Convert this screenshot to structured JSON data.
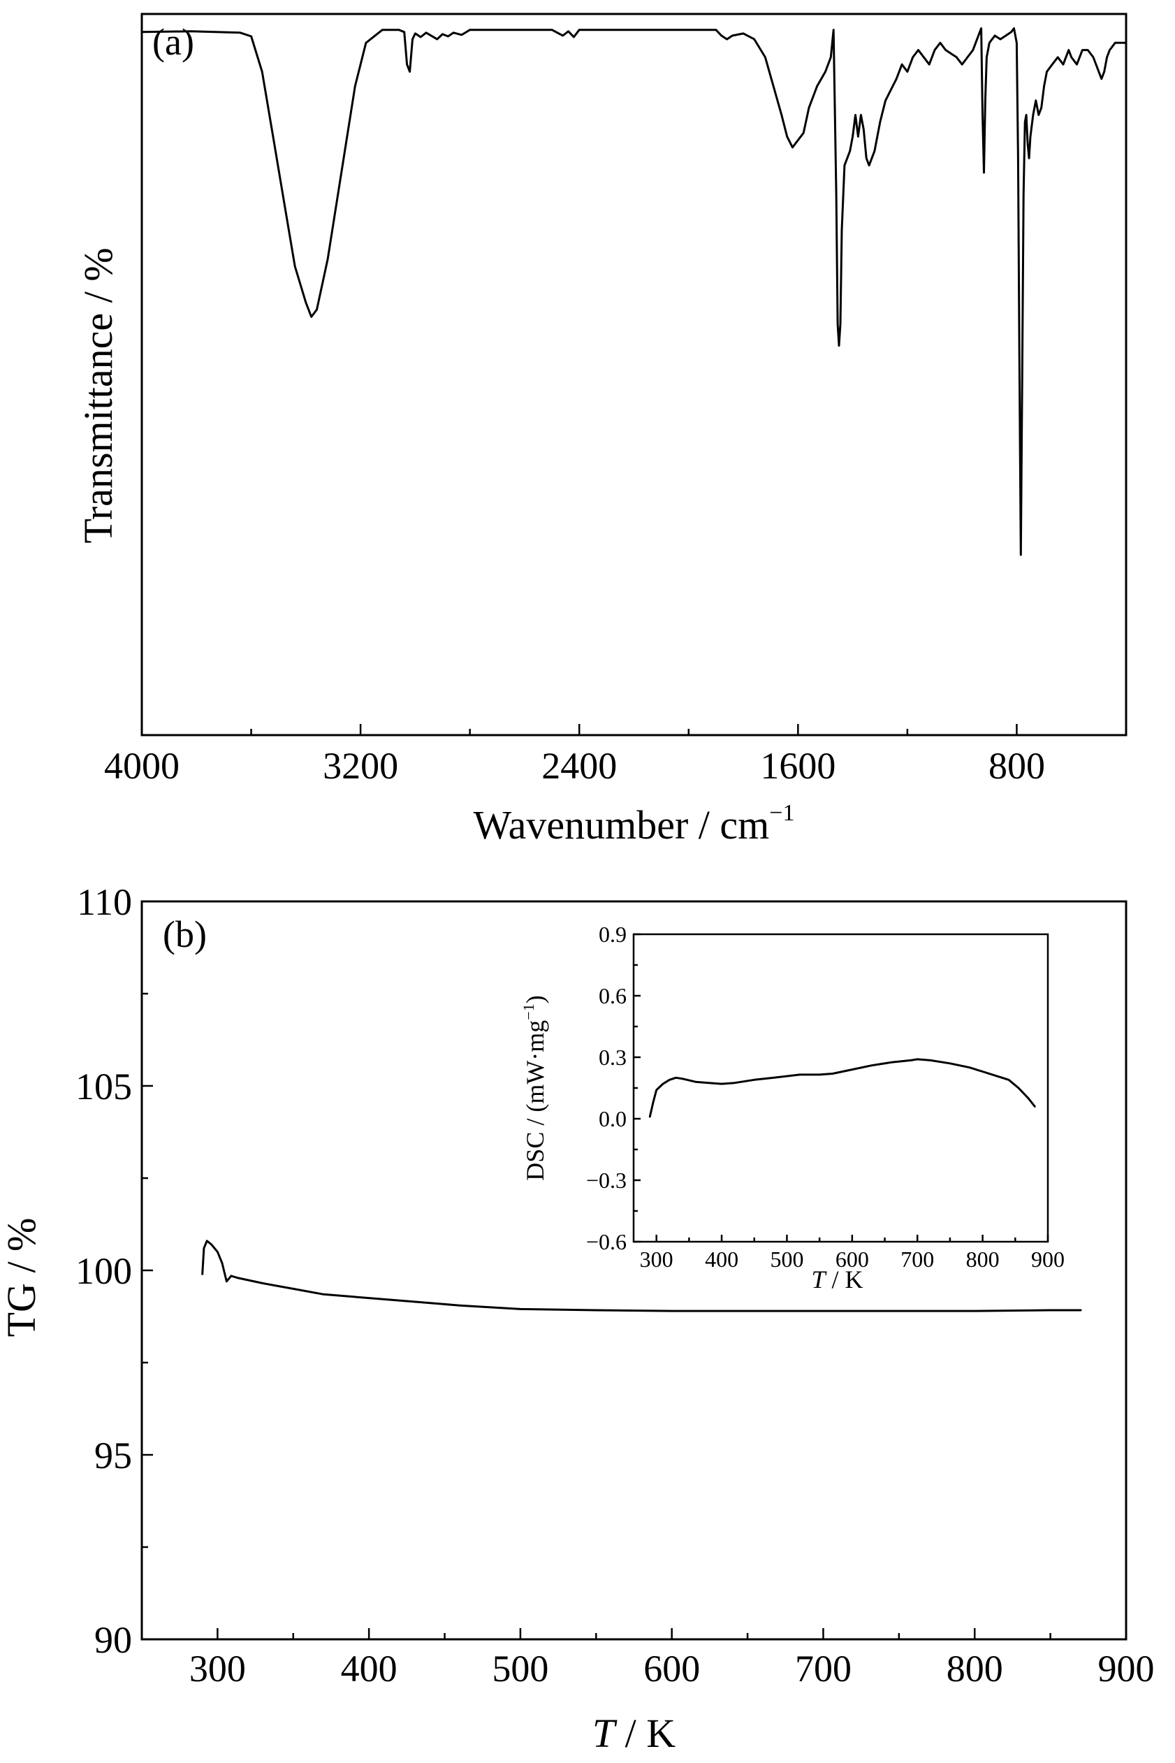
{
  "chart_data": [
    {
      "panel": "(a)",
      "type": "line",
      "xlabel_main": "Wavenumber / cm",
      "xlabel_sup": "−1",
      "ylabel": "Transmittance / %",
      "xlim": [
        4000,
        400
      ],
      "x_ticks": [
        4000,
        3200,
        2400,
        1600,
        800
      ],
      "x_minor_ticks": [
        3600,
        2800,
        2000,
        1200
      ],
      "y_ticks_shown": false,
      "series": [
        {
          "points": [
            [
              4000,
              97.5
            ],
            [
              3820,
              97.6
            ],
            [
              3640,
              97.4
            ],
            [
              3600,
              96.9
            ],
            [
              3560,
              92
            ],
            [
              3520,
              83
            ],
            [
              3480,
              74
            ],
            [
              3440,
              65
            ],
            [
              3400,
              60
            ],
            [
              3380,
              58
            ],
            [
              3360,
              59
            ],
            [
              3320,
              66
            ],
            [
              3270,
              78
            ],
            [
              3220,
              90
            ],
            [
              3180,
              96
            ],
            [
              3120,
              97.8
            ],
            [
              3060,
              97.8
            ],
            [
              3040,
              97.5
            ],
            [
              3030,
              93
            ],
            [
              3020,
              92
            ],
            [
              3010,
              96.5
            ],
            [
              3000,
              97.3
            ],
            [
              2980,
              96.8
            ],
            [
              2960,
              97.4
            ],
            [
              2920,
              96.5
            ],
            [
              2900,
              97.2
            ],
            [
              2880,
              96.9
            ],
            [
              2860,
              97.4
            ],
            [
              2830,
              97.1
            ],
            [
              2800,
              97.8
            ],
            [
              2600,
              97.8
            ],
            [
              2500,
              97.8
            ],
            [
              2460,
              97
            ],
            [
              2440,
              97.6
            ],
            [
              2420,
              96.8
            ],
            [
              2400,
              97.8
            ],
            [
              2200,
              97.8
            ],
            [
              2000,
              97.8
            ],
            [
              1900,
              97.8
            ],
            [
              1880,
              97
            ],
            [
              1860,
              96.5
            ],
            [
              1840,
              97
            ],
            [
              1800,
              97.3
            ],
            [
              1760,
              96.5
            ],
            [
              1720,
              94
            ],
            [
              1690,
              90
            ],
            [
              1660,
              86
            ],
            [
              1640,
              83
            ],
            [
              1620,
              81.5
            ],
            [
              1600,
              82.5
            ],
            [
              1580,
              83.5
            ],
            [
              1560,
              87
            ],
            [
              1530,
              90
            ],
            [
              1500,
              92
            ],
            [
              1480,
              94
            ],
            [
              1470,
              97.8
            ],
            [
              1460,
              75
            ],
            [
              1455,
              57
            ],
            [
              1450,
              54
            ],
            [
              1445,
              57
            ],
            [
              1440,
              70
            ],
            [
              1430,
              79
            ],
            [
              1410,
              81
            ],
            [
              1400,
              83
            ],
            [
              1390,
              86
            ],
            [
              1380,
              83
            ],
            [
              1370,
              86
            ],
            [
              1360,
              84
            ],
            [
              1350,
              80
            ],
            [
              1340,
              79
            ],
            [
              1320,
              81
            ],
            [
              1300,
              85
            ],
            [
              1280,
              88
            ],
            [
              1240,
              91
            ],
            [
              1220,
              93
            ],
            [
              1200,
              92
            ],
            [
              1180,
              94
            ],
            [
              1160,
              95
            ],
            [
              1140,
              94
            ],
            [
              1120,
              93
            ],
            [
              1100,
              95
            ],
            [
              1080,
              96
            ],
            [
              1060,
              95
            ],
            [
              1040,
              94.5
            ],
            [
              1020,
              94
            ],
            [
              1000,
              93
            ],
            [
              980,
              94
            ],
            [
              960,
              95
            ],
            [
              950,
              96
            ],
            [
              940,
              97
            ],
            [
              930,
              98
            ],
            [
              925,
              86
            ],
            [
              920,
              78
            ],
            [
              915,
              88
            ],
            [
              910,
              94
            ],
            [
              900,
              96
            ],
            [
              880,
              97
            ],
            [
              860,
              96.5
            ],
            [
              840,
              97
            ],
            [
              820,
              97.5
            ],
            [
              810,
              98
            ],
            [
              800,
              96
            ],
            [
              795,
              80
            ],
            [
              790,
              50
            ],
            [
              785,
              25
            ],
            [
              780,
              50
            ],
            [
              775,
              75
            ],
            [
              770,
              85
            ],
            [
              765,
              86
            ],
            [
              760,
              82
            ],
            [
              755,
              80
            ],
            [
              750,
              83
            ],
            [
              740,
              86
            ],
            [
              730,
              88
            ],
            [
              720,
              86
            ],
            [
              710,
              87
            ],
            [
              700,
              90
            ],
            [
              690,
              92
            ],
            [
              670,
              93
            ],
            [
              650,
              94
            ],
            [
              630,
              93
            ],
            [
              610,
              95
            ],
            [
              600,
              94
            ],
            [
              580,
              93
            ],
            [
              560,
              95
            ],
            [
              540,
              95
            ],
            [
              520,
              94
            ],
            [
              500,
              92
            ],
            [
              490,
              91
            ],
            [
              480,
              92
            ],
            [
              470,
              94
            ],
            [
              460,
              95
            ],
            [
              440,
              96
            ],
            [
              420,
              96
            ],
            [
              400,
              96
            ]
          ]
        }
      ]
    },
    {
      "panel": "(b)",
      "type": "line",
      "xlabel_italic": "T",
      "xlabel_rest": " / K",
      "ylabel": "TG / %",
      "xlim": [
        250,
        900
      ],
      "ylim": [
        90,
        110
      ],
      "x_ticks": [
        300,
        400,
        500,
        600,
        700,
        800,
        900
      ],
      "y_ticks": [
        90,
        95,
        100,
        105,
        110
      ],
      "series": [
        {
          "points": [
            [
              290,
              99.9
            ],
            [
              291,
              100.6
            ],
            [
              293,
              100.8
            ],
            [
              296,
              100.7
            ],
            [
              300,
              100.5
            ],
            [
              303,
              100.2
            ],
            [
              306,
              99.7
            ],
            [
              309,
              99.85
            ],
            [
              313,
              99.8
            ],
            [
              330,
              99.65
            ],
            [
              350,
              99.5
            ],
            [
              370,
              99.35
            ],
            [
              400,
              99.25
            ],
            [
              430,
              99.15
            ],
            [
              460,
              99.05
            ],
            [
              500,
              98.95
            ],
            [
              550,
              98.92
            ],
            [
              600,
              98.9
            ],
            [
              650,
              98.9
            ],
            [
              700,
              98.9
            ],
            [
              750,
              98.9
            ],
            [
              800,
              98.9
            ],
            [
              850,
              98.92
            ],
            [
              870,
              98.92
            ]
          ]
        }
      ],
      "inset": {
        "type": "line",
        "xlabel_italic": "T",
        "xlabel_rest": " / K",
        "ylabel_main": "DSC / (mW·mg",
        "ylabel_sup": "−1",
        "ylabel_end": ")",
        "xlim": [
          265,
          900
        ],
        "ylim": [
          -0.6,
          0.9
        ],
        "x_ticks": [
          300,
          400,
          500,
          600,
          700,
          800,
          900
        ],
        "y_ticks": [
          "−0.6",
          "−0.3",
          "0.0",
          "0.3",
          "0.6",
          "0.9"
        ],
        "y_tick_values": [
          -0.6,
          -0.3,
          0.0,
          0.3,
          0.6,
          0.9
        ],
        "series": [
          {
            "points": [
              [
                290,
                0.01
              ],
              [
                295,
                0.08
              ],
              [
                300,
                0.14
              ],
              [
                310,
                0.17
              ],
              [
                320,
                0.19
              ],
              [
                330,
                0.2
              ],
              [
                340,
                0.195
              ],
              [
                360,
                0.18
              ],
              [
                380,
                0.175
              ],
              [
                400,
                0.17
              ],
              [
                420,
                0.175
              ],
              [
                450,
                0.19
              ],
              [
                480,
                0.2
              ],
              [
                520,
                0.215
              ],
              [
                550,
                0.215
              ],
              [
                570,
                0.22
              ],
              [
                600,
                0.24
              ],
              [
                630,
                0.26
              ],
              [
                660,
                0.275
              ],
              [
                690,
                0.285
              ],
              [
                700,
                0.29
              ],
              [
                720,
                0.285
              ],
              [
                750,
                0.27
              ],
              [
                780,
                0.25
              ],
              [
                800,
                0.23
              ],
              [
                820,
                0.21
              ],
              [
                840,
                0.19
              ],
              [
                855,
                0.15
              ],
              [
                870,
                0.1
              ],
              [
                880,
                0.06
              ]
            ]
          }
        ]
      }
    }
  ]
}
